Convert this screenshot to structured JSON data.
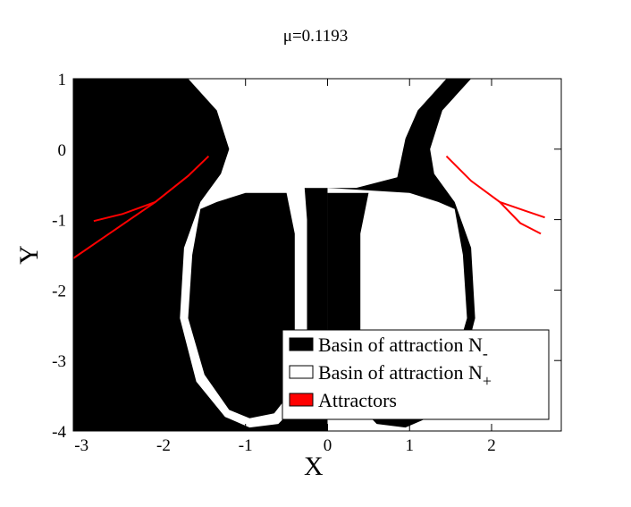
{
  "chart_data": {
    "type": "scatter",
    "title": "μ=0.1193",
    "xlabel": "X",
    "ylabel": "Y",
    "xlim": [
      -3.1,
      2.85
    ],
    "ylim": [
      -4,
      1
    ],
    "x_ticks": [
      "-3",
      "-2",
      "-1",
      "0",
      "1",
      "2"
    ],
    "y_ticks": [
      "1",
      "0",
      "-1",
      "-2",
      "-3",
      "-4"
    ],
    "legend": {
      "position": "bottom-right",
      "entries": [
        {
          "label_main": "Basin of attraction N",
          "subscript": "-",
          "swatch": "#000000"
        },
        {
          "label_main": "Basin of attraction N",
          "subscript": "+",
          "swatch": "#ffffff"
        },
        {
          "label_main": "Attractors",
          "subscript": "",
          "swatch": "#ff0000"
        }
      ]
    },
    "series": [
      {
        "name": "Attractors",
        "color": "#ff0000",
        "left_arm_a": [
          [
            -1.45,
            -0.1
          ],
          [
            -1.7,
            -0.38
          ],
          [
            -2.1,
            -0.75
          ],
          [
            -2.6,
            -1.15
          ],
          [
            -3.1,
            -1.55
          ]
        ],
        "left_arm_b": [
          [
            -2.1,
            -0.75
          ],
          [
            -2.5,
            -0.92
          ],
          [
            -2.85,
            -1.02
          ]
        ],
        "right_arm_a": [
          [
            1.45,
            -0.1
          ],
          [
            1.75,
            -0.45
          ],
          [
            2.1,
            -0.75
          ],
          [
            2.35,
            -1.05
          ],
          [
            2.6,
            -1.2
          ]
        ],
        "right_arm_b": [
          [
            2.1,
            -0.75
          ],
          [
            2.4,
            -0.87
          ],
          [
            2.65,
            -0.97
          ]
        ]
      }
    ]
  }
}
